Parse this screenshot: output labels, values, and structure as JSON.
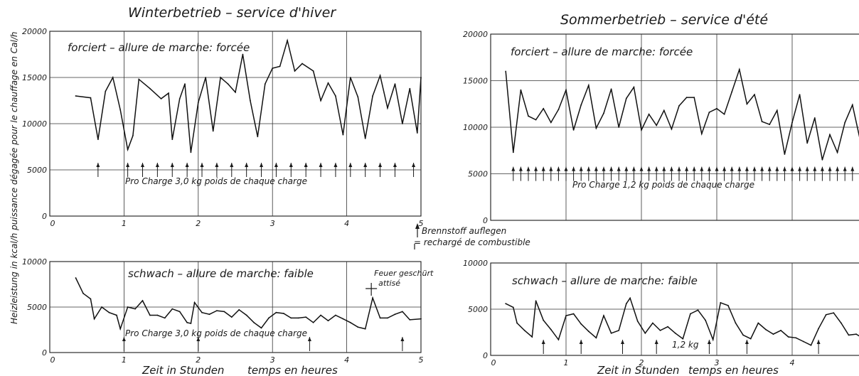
{
  "titles": {
    "winter": "Winterbetrieb  –  service d'hiver",
    "summer": "Sommerbetrieb  –  service d'été"
  },
  "y_axis_label": "Heizleistung in kcal/h   puissance  dégagée pour le chauffage en Cal/h",
  "x_label_de": "Zeit in Stunden",
  "x_label_fr": "temps en heures",
  "legend": {
    "line1": "Brennstoff auflegen",
    "line2": "= rechargé de combustible"
  },
  "chart_data": [
    {
      "id": "winter-forced",
      "type": "line",
      "mode": "forciert – allure de marche: forcée",
      "charge_text": "Pro Charge   3,0 kg   poids de chaque charge",
      "x_ticks": [
        "0",
        "1",
        "2",
        "3",
        "4",
        "5"
      ],
      "y_ticks": [
        "0",
        "5000",
        "10000",
        "15000",
        "20000"
      ],
      "xlim": [
        0,
        5
      ],
      "ylim": [
        0,
        20000
      ],
      "x": [
        0.35,
        0.55,
        0.65,
        0.75,
        0.85,
        0.95,
        1.05,
        1.12,
        1.2,
        1.35,
        1.5,
        1.6,
        1.65,
        1.75,
        1.82,
        1.9,
        2.0,
        2.1,
        2.2,
        2.3,
        2.4,
        2.5,
        2.6,
        2.7,
        2.8,
        2.9,
        3.0,
        3.1,
        3.2,
        3.3,
        3.4,
        3.55,
        3.65,
        3.75,
        3.85,
        3.95,
        4.05,
        4.15,
        4.25,
        4.35,
        4.45,
        4.55,
        4.65,
        4.75,
        4.85,
        4.95,
        5.0
      ],
      "y": [
        13000,
        12800,
        8300,
        13500,
        15000,
        11500,
        7200,
        8700,
        14800,
        13800,
        12700,
        13300,
        8300,
        12700,
        14300,
        6900,
        12300,
        15000,
        9200,
        15000,
        14300,
        13400,
        17500,
        12500,
        8600,
        14300,
        16000,
        16200,
        19000,
        15700,
        16500,
        15700,
        12500,
        14400,
        13000,
        8800,
        15000,
        12900,
        8400,
        13000,
        15200,
        11700,
        14300,
        10000,
        13800,
        9000,
        15000
      ],
      "recharge_x": [
        0.65,
        1.05,
        1.25,
        1.45,
        1.65,
        1.85,
        2.05,
        2.25,
        2.45,
        2.65,
        2.85,
        3.05,
        3.25,
        3.45,
        3.65,
        3.85,
        4.05,
        4.25,
        4.45,
        4.65,
        4.9
      ]
    },
    {
      "id": "summer-forced",
      "type": "line",
      "mode": "forciert – allure de marche: forcée",
      "charge_text": "Pro Charge   1,2 kg   poids de chaque charge",
      "x_ticks": [],
      "y_ticks": [
        "0",
        "5000",
        "10000",
        "15000",
        "20000"
      ],
      "xlim": [
        0,
        5
      ],
      "ylim": [
        0,
        20000
      ],
      "x": [
        0.2,
        0.3,
        0.4,
        0.5,
        0.6,
        0.7,
        0.8,
        0.9,
        1.0,
        1.1,
        1.2,
        1.3,
        1.4,
        1.5,
        1.6,
        1.7,
        1.8,
        1.9,
        2.0,
        2.1,
        2.2,
        2.3,
        2.4,
        2.5,
        2.6,
        2.7,
        2.8,
        2.9,
        3.0,
        3.1,
        3.2,
        3.3,
        3.4,
        3.5,
        3.6,
        3.7,
        3.8,
        3.9,
        4.0,
        4.1,
        4.2,
        4.3,
        4.4,
        4.5,
        4.6,
        4.7,
        4.8,
        4.9
      ],
      "y": [
        16000,
        7300,
        14000,
        11200,
        10800,
        12000,
        10500,
        11900,
        14000,
        9700,
        12400,
        14500,
        9900,
        11500,
        14100,
        10000,
        13100,
        14300,
        9700,
        11400,
        10200,
        11800,
        9800,
        12300,
        13200,
        13200,
        9300,
        11600,
        12000,
        11400,
        13800,
        16200,
        12500,
        13500,
        10600,
        10300,
        11800,
        7100,
        10500,
        13500,
        8300,
        11000,
        6500,
        9200,
        7300,
        10500,
        12400,
        8700
      ],
      "recharge_x": [
        0.3,
        0.4,
        0.5,
        0.6,
        0.7,
        0.8,
        0.9,
        1.0,
        1.1,
        1.2,
        1.3,
        1.4,
        1.5,
        1.6,
        1.7,
        1.8,
        1.9,
        2.0,
        2.1,
        2.2,
        2.3,
        2.4,
        2.5,
        2.6,
        2.7,
        2.8,
        2.9,
        3.0,
        3.1,
        3.2,
        3.3,
        3.4,
        3.5,
        3.6,
        3.7,
        3.8,
        3.9,
        4.0,
        4.1,
        4.2,
        4.3,
        4.4,
        4.5,
        4.6,
        4.7,
        4.8,
        4.9
      ]
    },
    {
      "id": "winter-weak",
      "type": "line",
      "mode": "schwach – allure de marche: faible",
      "charge_text": "Pro Charge   3,0 kg   poids de chaque charge",
      "annotation": [
        "Feuer geschürt",
        "attisé"
      ],
      "annotation_x": 4.35,
      "x_ticks": [
        "0",
        "1",
        "2",
        "3",
        "4",
        "5"
      ],
      "y_ticks": [
        "0",
        "5000",
        "10000"
      ],
      "xlim": [
        0,
        5
      ],
      "ylim": [
        0,
        10000
      ],
      "x": [
        0.35,
        0.45,
        0.55,
        0.6,
        0.7,
        0.8,
        0.9,
        0.95,
        1.05,
        1.15,
        1.25,
        1.35,
        1.45,
        1.55,
        1.65,
        1.75,
        1.85,
        1.9,
        1.95,
        2.05,
        2.15,
        2.25,
        2.35,
        2.45,
        2.55,
        2.65,
        2.75,
        2.85,
        2.95,
        3.05,
        3.15,
        3.25,
        3.35,
        3.45,
        3.55,
        3.65,
        3.75,
        3.85,
        3.95,
        4.05,
        4.15,
        4.25,
        4.35,
        4.45,
        4.55,
        4.65,
        4.75,
        4.85,
        5.0
      ],
      "y": [
        8200,
        6500,
        5900,
        3700,
        5000,
        4400,
        4100,
        2600,
        5000,
        4800,
        5700,
        4100,
        4100,
        3800,
        4800,
        4500,
        3300,
        3200,
        5500,
        4400,
        4200,
        4600,
        4500,
        3900,
        4700,
        4100,
        3300,
        2700,
        3800,
        4400,
        4300,
        3800,
        3800,
        3900,
        3300,
        4100,
        3500,
        4100,
        3700,
        3300,
        2800,
        2600,
        6000,
        3800,
        3800,
        4200,
        4500,
        3600,
        3700
      ],
      "recharge_x": [
        1.0,
        2.0,
        3.5,
        4.75
      ]
    },
    {
      "id": "summer-weak",
      "type": "line",
      "mode": "schwach – allure de marche: faible",
      "charge_text": "1,2 kg",
      "x_ticks": [
        "0",
        "1",
        "2",
        "3",
        "4"
      ],
      "y_ticks": [
        "0",
        "5000",
        "10000"
      ],
      "xlim": [
        0,
        5
      ],
      "ylim": [
        0,
        10000
      ],
      "x": [
        0.2,
        0.3,
        0.35,
        0.45,
        0.55,
        0.6,
        0.7,
        0.8,
        0.9,
        1.0,
        1.1,
        1.2,
        1.3,
        1.4,
        1.5,
        1.6,
        1.7,
        1.8,
        1.85,
        1.95,
        2.05,
        2.15,
        2.25,
        2.35,
        2.45,
        2.55,
        2.65,
        2.75,
        2.85,
        2.95,
        3.05,
        3.15,
        3.25,
        3.35,
        3.45,
        3.55,
        3.65,
        3.75,
        3.85,
        3.95,
        4.05,
        4.15,
        4.25,
        4.35,
        4.45,
        4.55,
        4.65,
        4.75,
        4.85,
        4.95
      ],
      "y": [
        5600,
        5200,
        3500,
        2700,
        2000,
        5900,
        3800,
        2800,
        1700,
        4300,
        4500,
        3400,
        2600,
        1900,
        4300,
        2400,
        2700,
        5600,
        6200,
        3700,
        2400,
        3500,
        2700,
        3100,
        2400,
        1800,
        4500,
        4900,
        3800,
        1700,
        5700,
        5400,
        3500,
        2200,
        1800,
        3500,
        2800,
        2300,
        2700,
        2000,
        1900,
        1500,
        1100,
        2900,
        4400,
        4600,
        3500,
        2200,
        2300,
        1800
      ],
      "recharge_x": [
        0.7,
        1.2,
        1.75,
        2.2,
        2.9,
        3.4,
        4.35
      ]
    }
  ]
}
